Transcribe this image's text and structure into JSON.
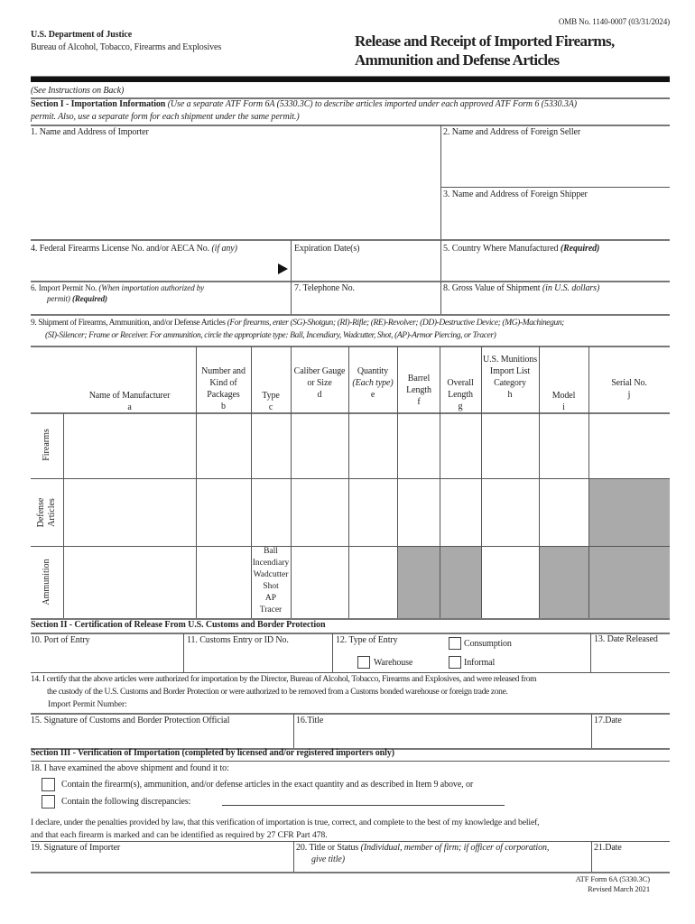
{
  "header": {
    "omb": "OMB No. 1140-0007 (03/31/2024)",
    "agency": "U.S. Department of Justice",
    "bureau": "Bureau of Alcohol, Tobacco, Firearms and Explosives",
    "title1": "Release and Receipt of Imported Firearms,",
    "title2": "Ammunition and Defense Articles"
  },
  "instructions": "(See Instructions on Back)",
  "section1": {
    "heading": "Section I - Importation Information",
    "note1": "(Use a separate ATF Form 6A (5330.3C) to describe articles imported under each approved ATF Form 6 (5330.3A)",
    "note2": "permit.  Also, use a separate form for each shipment under the same permit.)",
    "f1": "1.   Name and Address of Importer",
    "f2": "2.   Name and Address of Foreign Seller",
    "f3": "3.    Name and Address of Foreign Shipper",
    "f4": "4.   Federal Firearms License No. and/or AECA No.",
    "f4_note": "(if any)",
    "exp": "Expiration Date(s)",
    "f5": "5.   Country Where Manufactured",
    "f5_note": "(Required)",
    "f6": "6.   Import Permit No.",
    "f6_note": "(When importation authorized by",
    "f6_note2": "permit)",
    "f6_req": "(Required)",
    "f7": "7.   Telephone No.",
    "f8": "8.   Gross Value of Shipment",
    "f8_note": "(in U.S. dollars)",
    "f9": "9.  Shipment of Firearms, Ammunition, and/or Defense Articles",
    "f9_note": "(For firearms, enter (SG)-Shotgun; (RI)-Rifle; (RE)-Revolver; (DD)-Destructive Device; (MG)-Machinegun;",
    "f9_note2": "(SI)-Silencer; Frame or Receiver.  For ammunition, circle the appropriate type:  Ball, Incendiary, Wadcutter, Shot, (AP)-Armor Piercing, or Tracer)"
  },
  "table": {
    "columns": [
      {
        "label": "Name of Manufacturer",
        "letter": "a"
      },
      {
        "label": "Number and Kind of Packages",
        "letter": "b"
      },
      {
        "label": "Type",
        "letter": "c"
      },
      {
        "label": "Caliber Gauge or Size",
        "letter": "d"
      },
      {
        "label": "Quantity",
        "italic": "(Each type)",
        "letter": "e"
      },
      {
        "label": "Barrel Length",
        "letter": "f"
      },
      {
        "label": "Overall Length",
        "letter": "g"
      },
      {
        "label": "U.S. Munitions Import List Category",
        "letter": "h"
      },
      {
        "label": "Model",
        "letter": "i"
      },
      {
        "label": "Serial No.",
        "letter": "j"
      }
    ],
    "rows": [
      "Firearms",
      "Defense Articles",
      "Ammunition"
    ],
    "ammo_types": [
      "Ball",
      "Incendiary",
      "Wadcutter",
      "Shot",
      "AP",
      "Tracer"
    ]
  },
  "section2": {
    "heading": "Section II - Certification of Release From U.S. Customs and Border Protection",
    "f10": "10.  Port of Entry",
    "f11": "11.  Customs Entry or ID No.",
    "f12": "12.  Type of Entry",
    "consumption": "Consumption",
    "warehouse": "Warehouse",
    "informal": "Informal",
    "f13": "13.  Date Released",
    "f14a": "14.  I certify that the above articles were authorized for importation by the Director, Bureau of Alcohol, Tobacco, Firearms and Explosives, and were released from",
    "f14b": "the custody of the U.S. Customs and Border Protection or were authorized to be removed from a Customs bonded warehouse or foreign trade zone.",
    "f14c": "Import Permit Number:",
    "f15": "15.  Signature of Customs and Border Protection Official",
    "f16": "16.Title",
    "f17": "17.Date"
  },
  "section3": {
    "heading": "Section III - Verification of Importation (completed by licensed and/or registered importers only)",
    "f18": "18.  I have examined the above shipment and found it to:",
    "opt1": "Contain the firearm(s), ammunition, and/or defense articles in the exact quantity and as described in Item 9 above, or",
    "opt2": "Contain the following discrepancies:",
    "declare1": "I declare, under the penalties provided by law, that this verification of importation is true, correct, and complete to the best of my knowledge and belief,",
    "declare2": "and that each firearm is marked and can be identified as required by 27 CFR Part 478.",
    "f19": "19.  Signature of Importer",
    "f20": "20.  Title or Status",
    "f20_note": "(Individual, member of firm; if officer of corporation,",
    "f20_note2": "give title)",
    "f21": "21.Date"
  },
  "footer": {
    "form": "ATF Form 6A (5330.3C)",
    "revised": "Revised March 2021"
  }
}
